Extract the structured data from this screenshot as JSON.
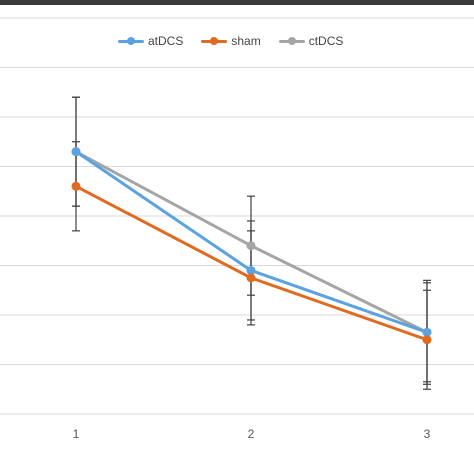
{
  "colors": {
    "atDCS": "#5ba3e0",
    "sham": "#e06a1f",
    "ctDCS": "#a5a5a5",
    "grid": "#d9d9d9",
    "errorbar": "#404040",
    "tick_text": "#555555"
  },
  "chart_data": {
    "type": "line",
    "categories": [
      "1",
      "2",
      "3"
    ],
    "ylim": [
      0,
      8
    ],
    "grid": true,
    "legend_position": "top-center",
    "series": [
      {
        "name": "atDCS",
        "color": "#5ba3e0",
        "values": [
          5.3,
          2.9,
          1.65
        ],
        "errors": [
          1.1,
          1.0,
          1.05
        ]
      },
      {
        "name": "sham",
        "color": "#e06a1f",
        "values": [
          4.6,
          2.75,
          1.5
        ],
        "errors": [
          0.9,
          0.95,
          1.0
        ]
      },
      {
        "name": "ctDCS",
        "color": "#a5a5a5",
        "values": [
          5.3,
          3.4,
          1.65
        ],
        "errors": [
          1.1,
          1.0,
          1.0
        ]
      }
    ]
  }
}
